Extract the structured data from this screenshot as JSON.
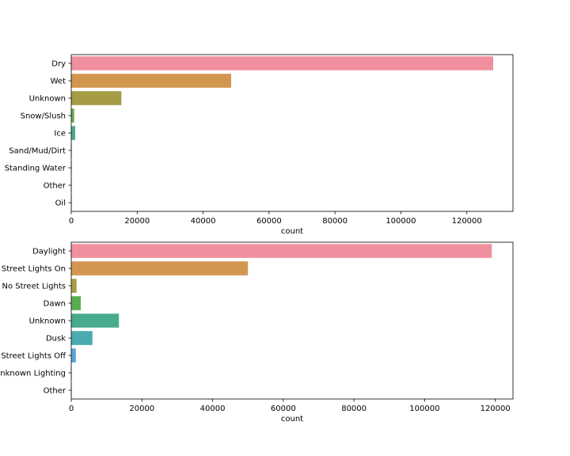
{
  "chart_data": [
    {
      "type": "bar",
      "orientation": "horizontal",
      "categories": [
        "Dry",
        "Wet",
        "Unknown",
        "Snow/Slush",
        "Ice",
        "Sand/Mud/Dirt",
        "Standing Water",
        "Other",
        "Oil"
      ],
      "values": [
        128000,
        48500,
        15200,
        900,
        1200,
        150,
        100,
        120,
        40
      ],
      "colors": [
        "#f0909f",
        "#d39650",
        "#a59c45",
        "#6aa84f",
        "#4bab8f",
        "#49ab9f",
        "#4daab8",
        "#8aa5d6",
        "#cd8ed3"
      ],
      "xlabel": "count",
      "ylabel": "",
      "xlim": [
        0,
        134000
      ],
      "xticks": [
        0,
        20000,
        40000,
        60000,
        80000,
        100000,
        120000
      ],
      "grid": false
    },
    {
      "type": "bar",
      "orientation": "horizontal",
      "categories": [
        "Daylight",
        "Dark - Street Lights On",
        "Dark - No Street Lights",
        "Dawn",
        "Unknown",
        "Dusk",
        "Dark - Street Lights Off",
        "Dark - Unknown Lighting",
        "Other"
      ],
      "tick_labels": [
        "Daylight",
        "Street Lights On",
        "No Street Lights",
        "Dawn",
        "Unknown",
        "Dusk",
        "Street Lights Off",
        "nknown Lighting",
        "Other"
      ],
      "values": [
        119000,
        50000,
        1500,
        2700,
        13500,
        6000,
        1300,
        60,
        40
      ],
      "colors": [
        "#f0909f",
        "#d39650",
        "#a59c45",
        "#5aad4e",
        "#49ab8e",
        "#4aabb0",
        "#5ba3da",
        "#b49ad8",
        "#e38ccd"
      ],
      "xlabel": "count",
      "ylabel": "",
      "xlim": [
        0,
        125000
      ],
      "xticks": [
        0,
        20000,
        40000,
        60000,
        80000,
        100000,
        120000
      ],
      "grid": false
    }
  ]
}
